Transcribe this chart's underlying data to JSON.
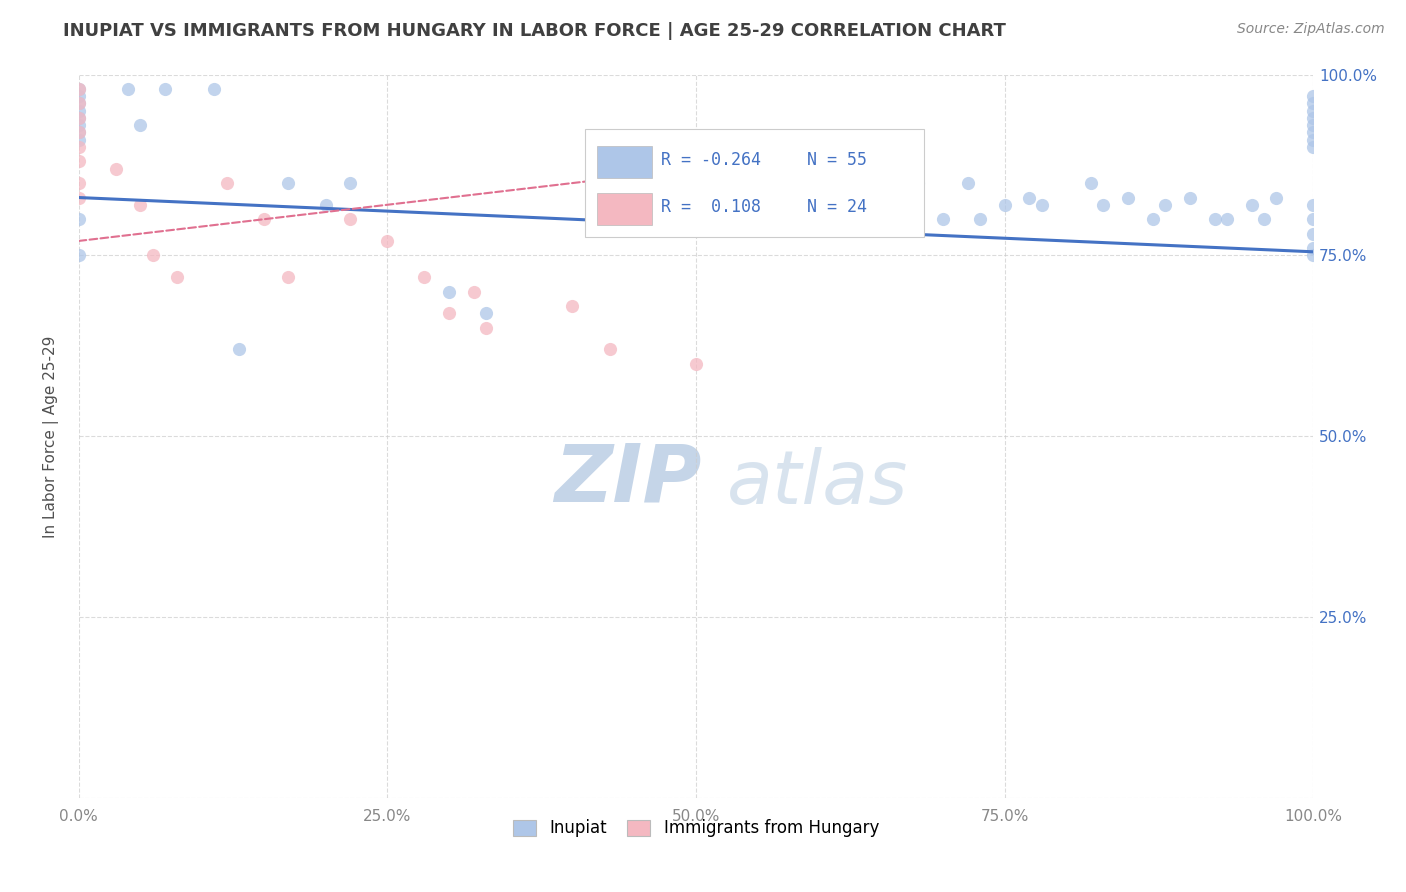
{
  "title": "INUPIAT VS IMMIGRANTS FROM HUNGARY IN LABOR FORCE | AGE 25-29 CORRELATION CHART",
  "source_text": "Source: ZipAtlas.com",
  "ylabel": "In Labor Force | Age 25-29",
  "xlim": [
    0.0,
    1.0
  ],
  "ylim": [
    0.0,
    1.0
  ],
  "xticks": [
    0.0,
    0.25,
    0.5,
    0.75,
    1.0
  ],
  "yticks": [
    0.0,
    0.25,
    0.5,
    0.75,
    1.0
  ],
  "xtick_labels": [
    "0.0%",
    "25.0%",
    "50.0%",
    "75.0%",
    "100.0%"
  ],
  "ytick_labels_right": [
    "",
    "25.0%",
    "50.0%",
    "75.0%",
    "100.0%"
  ],
  "legend_entries": [
    {
      "label": "Inupiat",
      "R": "-0.264",
      "N": "55",
      "color": "#aec6e8"
    },
    {
      "label": "Immigrants from Hungary",
      "R": " 0.108",
      "N": "24",
      "color": "#f4b8c1"
    }
  ],
  "inupiat_x": [
    0.0,
    0.0,
    0.0,
    0.0,
    0.0,
    0.0,
    0.0,
    0.0,
    0.0,
    0.0,
    0.04,
    0.05,
    0.07,
    0.11,
    0.13,
    0.17,
    0.2,
    0.22,
    0.3,
    0.33,
    0.5,
    0.55,
    0.58,
    0.65,
    0.68,
    0.7,
    0.72,
    0.73,
    0.75,
    0.77,
    0.78,
    0.82,
    0.83,
    0.85,
    0.87,
    0.88,
    0.9,
    0.92,
    0.93,
    0.95,
    0.96,
    0.97,
    1.0,
    1.0,
    1.0,
    1.0,
    1.0,
    1.0,
    1.0,
    1.0,
    1.0,
    1.0,
    1.0,
    1.0,
    1.0
  ],
  "inupiat_y": [
    0.98,
    0.97,
    0.96,
    0.95,
    0.94,
    0.93,
    0.92,
    0.91,
    0.8,
    0.75,
    0.98,
    0.93,
    0.98,
    0.98,
    0.62,
    0.85,
    0.82,
    0.85,
    0.7,
    0.67,
    0.85,
    0.82,
    0.88,
    0.83,
    0.85,
    0.8,
    0.85,
    0.8,
    0.82,
    0.83,
    0.82,
    0.85,
    0.82,
    0.83,
    0.8,
    0.82,
    0.83,
    0.8,
    0.8,
    0.82,
    0.8,
    0.83,
    0.97,
    0.96,
    0.95,
    0.94,
    0.93,
    0.92,
    0.91,
    0.9,
    0.82,
    0.8,
    0.78,
    0.76,
    0.75
  ],
  "hungary_x": [
    0.0,
    0.0,
    0.0,
    0.0,
    0.0,
    0.0,
    0.0,
    0.0,
    0.03,
    0.05,
    0.06,
    0.08,
    0.12,
    0.15,
    0.17,
    0.22,
    0.25,
    0.28,
    0.3,
    0.32,
    0.33,
    0.4,
    0.43,
    0.5
  ],
  "hungary_y": [
    0.98,
    0.96,
    0.94,
    0.92,
    0.9,
    0.88,
    0.85,
    0.83,
    0.87,
    0.82,
    0.75,
    0.72,
    0.85,
    0.8,
    0.72,
    0.8,
    0.77,
    0.72,
    0.67,
    0.7,
    0.65,
    0.68,
    0.62,
    0.6
  ],
  "inupiat_color": "#aec6e8",
  "hungary_color": "#f4b8c1",
  "inupiat_line_color": "#4472c4",
  "hungary_line_color": "#e07090",
  "bg_color": "#ffffff",
  "grid_color": "#cccccc",
  "title_color": "#404040",
  "marker_size": 90
}
